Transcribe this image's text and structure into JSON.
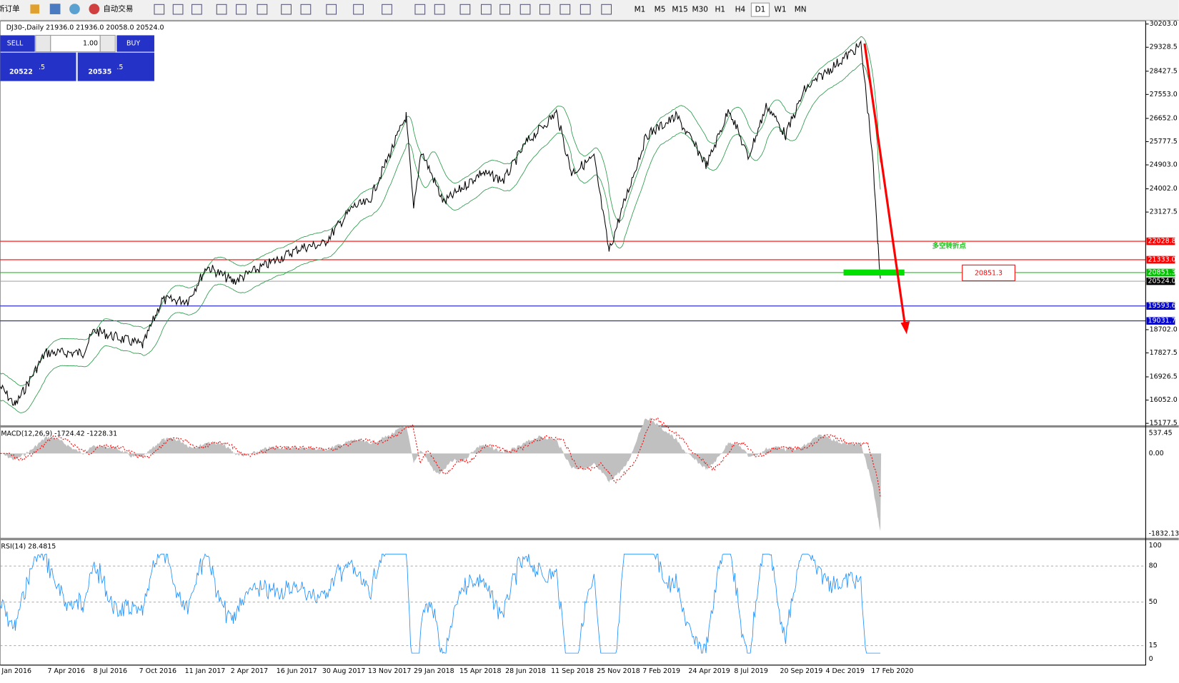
{
  "toolbar": {
    "new_order": "新订单",
    "auto_trade": "自动交易",
    "timeframes": [
      "M1",
      "M5",
      "M15",
      "M30",
      "H1",
      "H4",
      "D1",
      "W1",
      "MN"
    ]
  },
  "chart": {
    "header": "DJ30-,Daily  21936.0 21936.0 20058.0 20524.0",
    "trade_panel": {
      "sell": "SELL",
      "buy": "BUY",
      "lot": "1.00",
      "sell_big": "20522",
      "sell_frac": ".5",
      "buy_big": "20535",
      "buy_frac": ".5"
    },
    "price_axis": [
      "30203.0",
      "29328.5",
      "28427.5",
      "27553.0",
      "26652.0",
      "25777.5",
      "24903.0",
      "24002.0",
      "23127.5",
      "18702.0",
      "17827.5",
      "16926.5",
      "16052.0",
      "15177.5"
    ],
    "levels": [
      {
        "label": "22028.8",
        "color": "#ff0000"
      },
      {
        "label": "21333.0",
        "color": "#ff0000"
      },
      {
        "label": "20851.3",
        "color": "#00c000"
      },
      {
        "label": "20524.0",
        "color": "#000000"
      },
      {
        "label": "19593.6",
        "color": "#0000cc"
      },
      {
        "label": "19031.7",
        "color": "#0000cc"
      }
    ],
    "annotation": "多空转折点",
    "annotation_price": "20851.3"
  },
  "macd": {
    "label": "MACD(12,26,9) -1724.42 -1228.31",
    "axis": [
      "537.45",
      "0.00",
      "-1832.13"
    ]
  },
  "rsi": {
    "label": "RSI(14) 28.4815",
    "axis": [
      "100",
      "80",
      "50",
      "15",
      "0"
    ]
  },
  "dates": [
    "Jan 2016",
    "7 Apr 2016",
    "8 Jul 2016",
    "7 Oct 2016",
    "11 Jan 2017",
    "2 Apr 2017",
    "16 Jun 2017",
    "30 Aug 2017",
    "13 Nov 2017",
    "29 Jan 2018",
    "15 Apr 2018",
    "28 Jun 2018",
    "11 Sep 2018",
    "25 Nov 2018",
    "7 Feb 2019",
    "24 Apr 2019",
    "8 Jul 2019",
    "20 Sep 2019",
    "4 Dec 2019",
    "17 Feb 2020"
  ]
}
